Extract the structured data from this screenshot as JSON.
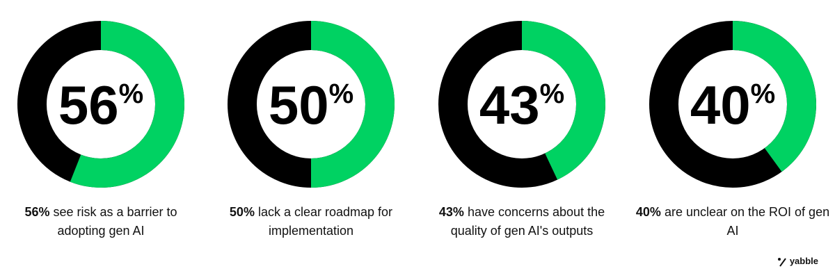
{
  "chart_data": [
    {
      "type": "donut",
      "values": [
        56
      ],
      "value_labels": [
        "56%"
      ],
      "caption": "see risk as a barrier to adopting gen AI",
      "color": "#00d262",
      "track_color": "#000000"
    },
    {
      "type": "donut",
      "values": [
        50
      ],
      "value_labels": [
        "50%"
      ],
      "caption": "lack a clear roadmap for implementation",
      "color": "#00d262",
      "track_color": "#000000"
    },
    {
      "type": "donut",
      "values": [
        43
      ],
      "value_labels": [
        "43%"
      ],
      "caption": "have concerns about the quality of gen AI's outputs",
      "color": "#00d262",
      "track_color": "#000000"
    },
    {
      "type": "donut",
      "values": [
        40
      ],
      "value_labels": [
        "40%"
      ],
      "caption": "are unclear on the ROI of gen AI",
      "color": "#00d262",
      "track_color": "#000000"
    }
  ],
  "logo": "yabble"
}
